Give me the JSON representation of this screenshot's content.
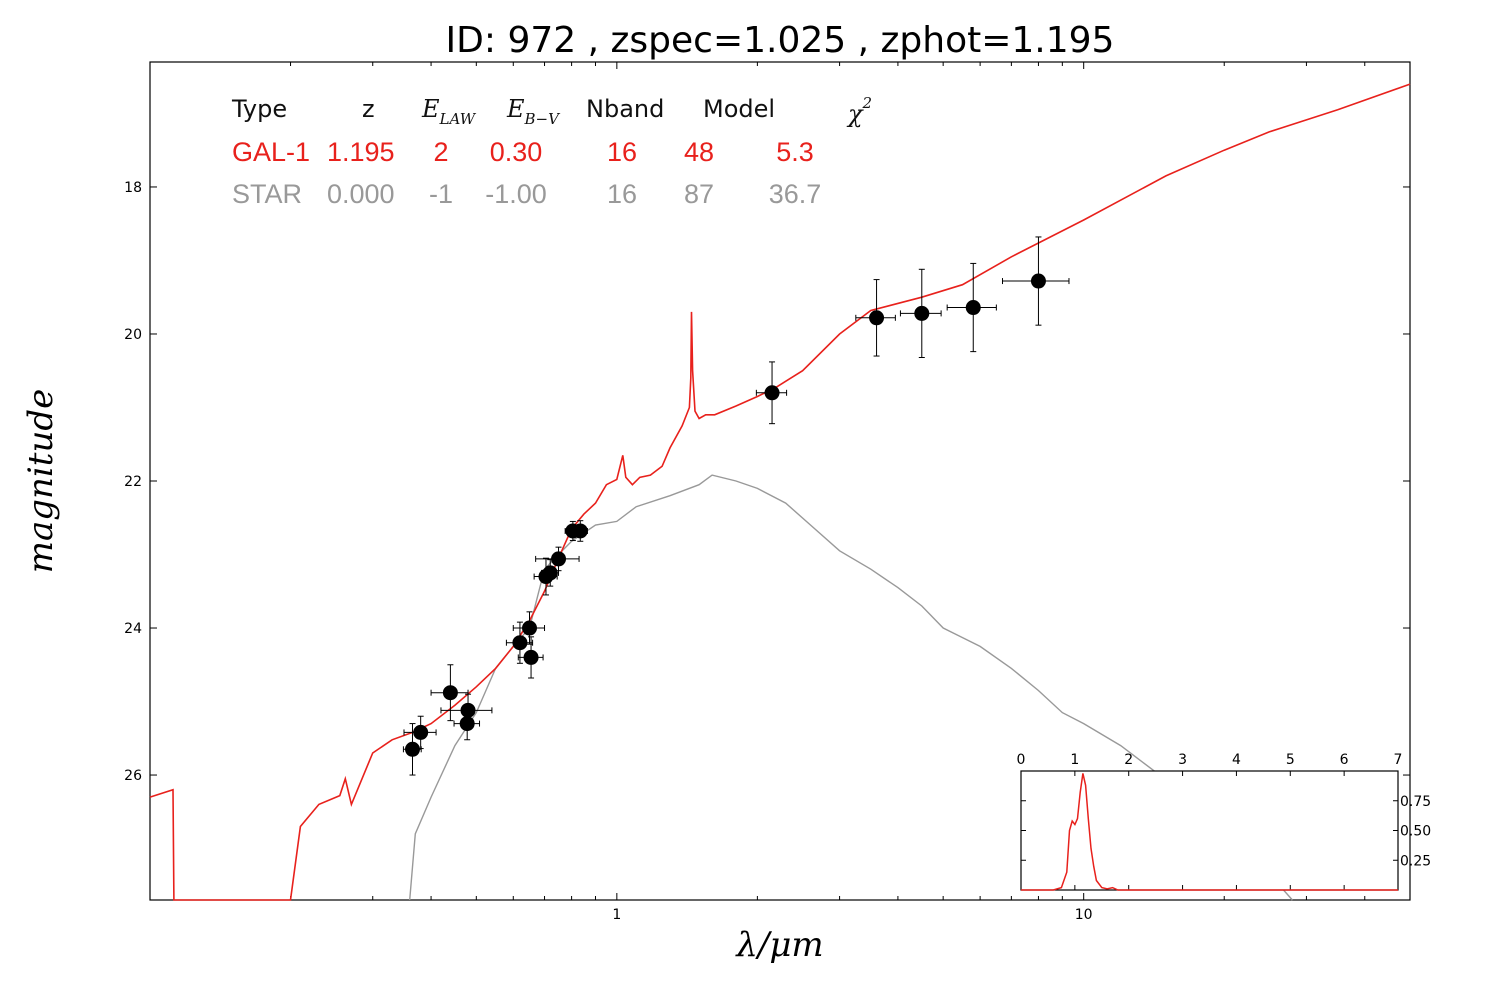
{
  "title": "ID:  972   , zspec=1.025 , zphot=1.195",
  "colors": {
    "galaxy": "#e8211c",
    "star": "#999999",
    "points": "#000000"
  },
  "table": {
    "headers": {
      "type": "Type",
      "z": "z",
      "elaw_main": "E",
      "elaw_sub": "LAW",
      "ebv_main": "E",
      "ebv_sub": "B−V",
      "nband": "Nband",
      "model": "Model",
      "chi_main": "χ",
      "chi_sup": "2"
    },
    "rows": [
      {
        "type": "GAL-1",
        "z": "1.195",
        "elaw": "2",
        "ebv": "0.30",
        "nband": "16",
        "model": "48",
        "chi2": "5.3",
        "color": "#e8211c"
      },
      {
        "type": "STAR",
        "z": "0.000",
        "elaw": "-1",
        "ebv": "-1.00",
        "nband": "16",
        "model": "87",
        "chi2": "36.7",
        "color": "#999999"
      }
    ]
  },
  "chart_data": [
    {
      "type": "scatter",
      "xlabel": "λ/μm",
      "ylabel": "magnitude",
      "x_scale": "log",
      "xlim": [
        0.1,
        50
      ],
      "ylim": [
        27.7,
        16.3
      ],
      "y_inverted": true,
      "x_ticks": [
        1,
        10
      ],
      "x_tick_labels": [
        "1",
        "10"
      ],
      "y_ticks": [
        18,
        20,
        22,
        24,
        26
      ],
      "y_tick_labels": [
        "18",
        "20",
        "22",
        "24",
        "26"
      ],
      "grid": false,
      "series": [
        {
          "kind": "errorbar_points",
          "points": [
            {
              "x": 0.365,
              "y": 25.65,
              "xerr_lo": 0.016,
              "xerr_hi": 0.016,
              "yerr": 0.35
            },
            {
              "x": 0.38,
              "y": 25.42,
              "xerr_lo": 0.03,
              "xerr_hi": 0.03,
              "yerr": 0.22
            },
            {
              "x": 0.44,
              "y": 24.88,
              "xerr_lo": 0.04,
              "xerr_hi": 0.04,
              "yerr": 0.38
            },
            {
              "x": 0.48,
              "y": 25.12,
              "xerr_lo": 0.06,
              "xerr_hi": 0.06,
              "yerr": 0.22
            },
            {
              "x": 0.478,
              "y": 25.3,
              "xerr_lo": 0.03,
              "xerr_hi": 0.03,
              "yerr": 0.22
            },
            {
              "x": 0.62,
              "y": 24.2,
              "xerr_lo": 0.04,
              "xerr_hi": 0.04,
              "yerr": 0.28
            },
            {
              "x": 0.65,
              "y": 24.0,
              "xerr_lo": 0.05,
              "xerr_hi": 0.05,
              "yerr": 0.22
            },
            {
              "x": 0.655,
              "y": 24.4,
              "xerr_lo": 0.04,
              "xerr_hi": 0.04,
              "yerr": 0.28
            },
            {
              "x": 0.705,
              "y": 23.3,
              "xerr_lo": 0.04,
              "xerr_hi": 0.04,
              "yerr": 0.25
            },
            {
              "x": 0.72,
              "y": 23.25,
              "xerr_lo": 0.03,
              "xerr_hi": 0.03,
              "yerr": 0.18
            },
            {
              "x": 0.75,
              "y": 23.06,
              "xerr_lo": 0.08,
              "xerr_hi": 0.08,
              "yerr": 0.16
            },
            {
              "x": 0.805,
              "y": 22.68,
              "xerr_lo": 0.03,
              "xerr_hi": 0.03,
              "yerr": 0.13
            },
            {
              "x": 0.835,
              "y": 22.68,
              "xerr_lo": 0.03,
              "xerr_hi": 0.03,
              "yerr": 0.14
            },
            {
              "x": 2.15,
              "y": 20.8,
              "xerr_lo": 0.16,
              "xerr_hi": 0.16,
              "yerr": 0.42
            },
            {
              "x": 3.6,
              "y": 19.78,
              "xerr_lo": 0.35,
              "xerr_hi": 0.35,
              "yerr": 0.52
            },
            {
              "x": 4.5,
              "y": 19.72,
              "xerr_lo": 0.45,
              "xerr_hi": 0.45,
              "yerr": 0.6
            },
            {
              "x": 5.8,
              "y": 19.64,
              "xerr_lo": 0.7,
              "xerr_hi": 0.7,
              "yerr": 0.6
            },
            {
              "x": 8.0,
              "y": 19.28,
              "xerr_lo": 1.3,
              "xerr_hi": 1.3,
              "yerr": 0.6
            }
          ]
        },
        {
          "kind": "line",
          "ref": "galaxy",
          "points": [
            [
              0.1,
              26.3
            ],
            [
              0.112,
              26.2
            ],
            [
              0.1125,
              27.8
            ],
            [
              0.2,
              27.8
            ],
            [
              0.21,
              26.7
            ],
            [
              0.23,
              26.4
            ],
            [
              0.255,
              26.28
            ],
            [
              0.262,
              26.05
            ],
            [
              0.27,
              26.4
            ],
            [
              0.3,
              25.7
            ],
            [
              0.33,
              25.52
            ],
            [
              0.365,
              25.42
            ],
            [
              0.4,
              25.3
            ],
            [
              0.45,
              25.05
            ],
            [
              0.5,
              24.8
            ],
            [
              0.55,
              24.55
            ],
            [
              0.6,
              24.25
            ],
            [
              0.65,
              23.9
            ],
            [
              0.7,
              23.5
            ],
            [
              0.75,
              23.05
            ],
            [
              0.8,
              22.65
            ],
            [
              0.85,
              22.45
            ],
            [
              0.9,
              22.3
            ],
            [
              0.95,
              22.05
            ],
            [
              1.0,
              21.98
            ],
            [
              1.03,
              21.65
            ],
            [
              1.045,
              21.95
            ],
            [
              1.08,
              22.05
            ],
            [
              1.12,
              21.95
            ],
            [
              1.18,
              21.92
            ],
            [
              1.25,
              21.8
            ],
            [
              1.3,
              21.55
            ],
            [
              1.38,
              21.25
            ],
            [
              1.43,
              21.0
            ],
            [
              1.44,
              20.6
            ],
            [
              1.445,
              19.7
            ],
            [
              1.453,
              20.5
            ],
            [
              1.47,
              21.05
            ],
            [
              1.5,
              21.15
            ],
            [
              1.55,
              21.1
            ],
            [
              1.62,
              21.1
            ],
            [
              1.8,
              20.98
            ],
            [
              2.0,
              20.85
            ],
            [
              2.2,
              20.72
            ],
            [
              2.5,
              20.5
            ],
            [
              3.0,
              20.0
            ],
            [
              3.5,
              19.68
            ],
            [
              4.5,
              19.5
            ],
            [
              5.5,
              19.33
            ],
            [
              7.0,
              18.95
            ],
            [
              10,
              18.45
            ],
            [
              15,
              17.85
            ],
            [
              20,
              17.5
            ],
            [
              25,
              17.25
            ],
            [
              35,
              16.95
            ],
            [
              50,
              16.6
            ]
          ]
        },
        {
          "kind": "line",
          "ref": "star",
          "points": [
            [
              0.36,
              27.7
            ],
            [
              0.37,
              26.8
            ],
            [
              0.4,
              26.3
            ],
            [
              0.45,
              25.6
            ],
            [
              0.5,
              25.15
            ],
            [
              0.55,
              24.55
            ],
            [
              0.6,
              24.25
            ],
            [
              0.65,
              24.0
            ],
            [
              0.7,
              23.2
            ],
            [
              0.75,
              23.0
            ],
            [
              0.8,
              22.82
            ],
            [
              0.9,
              22.6
            ],
            [
              1.0,
              22.55
            ],
            [
              1.1,
              22.35
            ],
            [
              1.3,
              22.2
            ],
            [
              1.5,
              22.05
            ],
            [
              1.6,
              21.92
            ],
            [
              1.8,
              22.0
            ],
            [
              2.0,
              22.1
            ],
            [
              2.3,
              22.3
            ],
            [
              2.6,
              22.6
            ],
            [
              3.0,
              22.95
            ],
            [
              3.5,
              23.2
            ],
            [
              4.0,
              23.45
            ],
            [
              4.5,
              23.7
            ],
            [
              5.0,
              24.0
            ],
            [
              6.0,
              24.25
            ],
            [
              7.0,
              24.55
            ],
            [
              8.0,
              24.85
            ],
            [
              9.0,
              25.15
            ],
            [
              10,
              25.3
            ],
            [
              12,
              25.6
            ],
            [
              14,
              25.92
            ],
            [
              16,
              26.2
            ],
            [
              18,
              26.5
            ],
            [
              20,
              26.8
            ],
            [
              22,
              27.05
            ],
            [
              25,
              27.35
            ],
            [
              28,
              27.7
            ]
          ]
        }
      ]
    },
    {
      "type": "line",
      "inset": true,
      "xlim": [
        0,
        7
      ],
      "ylim": [
        0,
        1.0
      ],
      "x_ticks": [
        0,
        1,
        2,
        3,
        4,
        5,
        6,
        7
      ],
      "x_tick_labels": [
        "0",
        "1",
        "2",
        "3",
        "4",
        "5",
        "6",
        "7"
      ],
      "y_ticks": [
        0.25,
        0.5,
        0.75
      ],
      "y_tick_labels": [
        "0.25",
        "0.50",
        "0.75"
      ],
      "grid": false,
      "series": [
        {
          "kind": "line",
          "ref": "galaxy",
          "points": [
            [
              0,
              0
            ],
            [
              0.6,
              0
            ],
            [
              0.75,
              0.02
            ],
            [
              0.85,
              0.15
            ],
            [
              0.9,
              0.5
            ],
            [
              0.95,
              0.58
            ],
            [
              1.0,
              0.55
            ],
            [
              1.05,
              0.6
            ],
            [
              1.1,
              0.82
            ],
            [
              1.15,
              0.98
            ],
            [
              1.2,
              0.88
            ],
            [
              1.25,
              0.6
            ],
            [
              1.3,
              0.35
            ],
            [
              1.35,
              0.2
            ],
            [
              1.4,
              0.08
            ],
            [
              1.5,
              0.02
            ],
            [
              1.6,
              0.01
            ],
            [
              1.7,
              0.02
            ],
            [
              1.8,
              0
            ],
            [
              2.5,
              0
            ],
            [
              7,
              0
            ]
          ]
        }
      ]
    }
  ]
}
